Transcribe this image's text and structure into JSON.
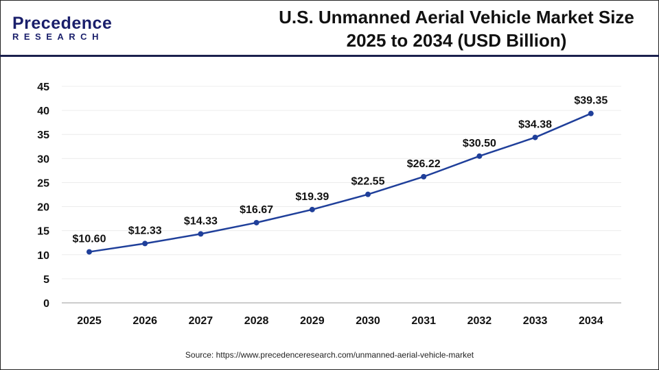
{
  "logo": {
    "text_top": "Precedence",
    "text_bottom": "RESEARCH"
  },
  "title": "U.S. Unmanned Aerial Vehicle Market Size 2025 to 2034 (USD Billion)",
  "source": "Source: https://www.precedenceresearch.com/unmanned-aerial-vehicle-market",
  "chart_data": {
    "type": "line",
    "title": "U.S. Unmanned Aerial Vehicle Market Size 2025 to 2034 (USD Billion)",
    "categories": [
      "2025",
      "2026",
      "2027",
      "2028",
      "2029",
      "2030",
      "2031",
      "2032",
      "2033",
      "2034"
    ],
    "values": [
      10.6,
      12.33,
      14.33,
      16.67,
      19.39,
      22.55,
      26.22,
      30.5,
      34.38,
      39.35
    ],
    "data_labels": [
      "$10.60",
      "$12.33",
      "$14.33",
      "$16.67",
      "$19.39",
      "$22.55",
      "$26.22",
      "$30.50",
      "$34.38",
      "$39.35"
    ],
    "ylim": [
      0,
      45
    ],
    "yticks": [
      0,
      5,
      10,
      15,
      20,
      25,
      30,
      35,
      40,
      45
    ],
    "grid": true,
    "line_color": "#1f3f9a"
  }
}
